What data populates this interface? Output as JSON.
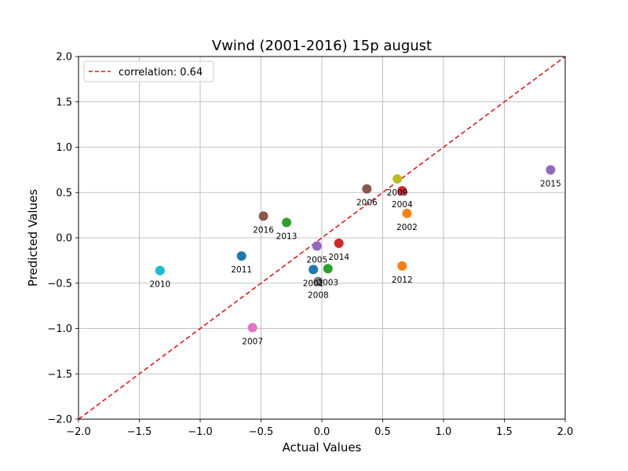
{
  "chart_data": {
    "type": "scatter",
    "title": "Vwind (2001-2016) 15p august",
    "xlabel": "Actual Values",
    "ylabel": "Predicted Values",
    "xlim": [
      -2.0,
      2.0
    ],
    "ylim": [
      -2.0,
      2.0
    ],
    "xticks": [
      "−2.0",
      "−1.5",
      "−1.0",
      "−0.5",
      "0.0",
      "0.5",
      "1.0",
      "1.5",
      "2.0"
    ],
    "yticks": [
      "−2.0",
      "−1.5",
      "−1.0",
      "−0.5",
      "0.0",
      "0.5",
      "1.0",
      "1.5",
      "2.0"
    ],
    "grid": true,
    "legend": {
      "position": "top-left",
      "entries": [
        {
          "label": "correlation: 0.64",
          "style": "dashed",
          "color": "#e41a1c"
        }
      ]
    },
    "reference_line": {
      "from": [
        -2.0,
        -2.0
      ],
      "to": [
        2.0,
        2.0
      ],
      "color": "#e41a1c",
      "style": "dashed"
    },
    "points": [
      {
        "label": "2001",
        "x": -0.07,
        "y": -0.35,
        "color": "#1f77b4"
      },
      {
        "label": "2002",
        "x": 0.7,
        "y": 0.27,
        "color": "#ff7f0e"
      },
      {
        "label": "2003",
        "x": 0.05,
        "y": -0.34,
        "color": "#2ca02c"
      },
      {
        "label": "2004",
        "x": 0.66,
        "y": 0.52,
        "color": "#d62728"
      },
      {
        "label": "2005",
        "x": -0.04,
        "y": -0.09,
        "color": "#9467bd"
      },
      {
        "label": "2006",
        "x": 0.37,
        "y": 0.54,
        "color": "#8c564b"
      },
      {
        "label": "2007",
        "x": -0.57,
        "y": -0.99,
        "color": "#e377c2"
      },
      {
        "label": "2008",
        "x": -0.03,
        "y": -0.48,
        "color": "#7f7f7f"
      },
      {
        "label": "2009",
        "x": 0.62,
        "y": 0.65,
        "color": "#bcbd22"
      },
      {
        "label": "2010",
        "x": -1.33,
        "y": -0.36,
        "color": "#17becf"
      },
      {
        "label": "2011",
        "x": -0.66,
        "y": -0.2,
        "color": "#1f77b4"
      },
      {
        "label": "2012",
        "x": 0.66,
        "y": -0.31,
        "color": "#ff7f0e"
      },
      {
        "label": "2013",
        "x": -0.29,
        "y": 0.17,
        "color": "#2ca02c"
      },
      {
        "label": "2014",
        "x": 0.14,
        "y": -0.06,
        "color": "#d62728"
      },
      {
        "label": "2015",
        "x": 1.88,
        "y": 0.75,
        "color": "#9467bd"
      },
      {
        "label": "2016",
        "x": -0.48,
        "y": 0.24,
        "color": "#8c564b"
      }
    ]
  }
}
